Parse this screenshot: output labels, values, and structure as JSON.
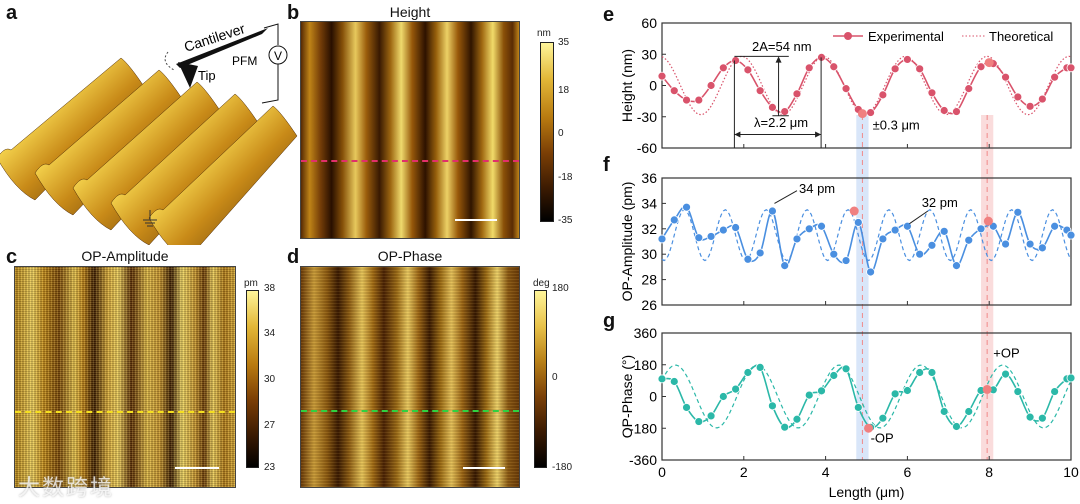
{
  "panel_labels": {
    "a": "a",
    "b": "b",
    "c": "c",
    "d": "d",
    "e": "e",
    "f": "f",
    "g": "g"
  },
  "panel_a": {
    "cantilever": "Cantilever",
    "tip": "Tip",
    "pfm": "PFM",
    "voltage": "V"
  },
  "maps": {
    "height": {
      "title": "Height",
      "unit": "nm",
      "ticks": [
        "35",
        "18",
        "0",
        "-18",
        "-35"
      ],
      "line_color": "#e0306a"
    },
    "amplitude": {
      "title": "OP-Amplitude",
      "unit": "pm",
      "ticks": [
        "38",
        "34",
        "30",
        "27",
        "23"
      ],
      "line_color": "#f5e020"
    },
    "phase": {
      "title": "OP-Phase",
      "unit": "deg",
      "ticks": [
        "180",
        "0",
        "-180"
      ],
      "line_color": "#30d040"
    }
  },
  "watermark": "大数跨境",
  "chart_data": [
    {
      "id": "e",
      "type": "line",
      "ylabel": "Height (nm)",
      "xlabel": "Length (μm)",
      "xlim": [
        0,
        10
      ],
      "ylim": [
        -60,
        60
      ],
      "yticks": [
        60,
        30,
        0,
        -30,
        -60
      ],
      "xticks": [
        0,
        2,
        4,
        6,
        8,
        10
      ],
      "color": "#d9536b",
      "legend": {
        "position": "top-right",
        "entries": [
          "Experimental",
          "Theoretical"
        ]
      },
      "experimental": {
        "x": [
          0,
          0.3,
          0.6,
          0.9,
          1.2,
          1.5,
          1.8,
          2.1,
          2.4,
          2.7,
          3.0,
          3.3,
          3.6,
          3.9,
          4.2,
          4.5,
          4.8,
          5.1,
          5.4,
          5.7,
          6.0,
          6.3,
          6.6,
          6.9,
          7.2,
          7.5,
          7.8,
          8.1,
          8.4,
          8.7,
          9.0,
          9.3,
          9.6,
          9.9,
          10.0
        ],
        "y": [
          9,
          -5,
          -14,
          -14,
          0,
          17,
          24,
          15,
          -5,
          -21,
          -25,
          -8,
          17,
          27,
          18,
          -3,
          -23,
          -26,
          -9,
          16,
          25,
          16,
          -7,
          -24,
          -25,
          -3,
          18,
          21,
          8,
          -11,
          -20,
          -13,
          8,
          17,
          17
        ]
      },
      "theoretical": {
        "amplitude": 28,
        "offset": 0,
        "period": 2.0,
        "peak_at": 1.95
      },
      "highlights": [
        {
          "x": 4.9,
          "y": -27
        },
        {
          "x": 8.0,
          "y": 22
        }
      ],
      "annotations": {
        "amplitude": "2A=54 nm",
        "wavelength": "λ=2.2 μm",
        "tolerance": "±0.3 μm"
      }
    },
    {
      "id": "f",
      "type": "line",
      "ylabel": "OP-Amplitude (pm)",
      "xlim": [
        0,
        10
      ],
      "ylim": [
        26,
        36
      ],
      "yticks": [
        36,
        34,
        32,
        30,
        28,
        26
      ],
      "xticks": [
        0,
        2,
        4,
        6,
        8,
        10
      ],
      "color": "#4a8fe0",
      "experimental": {
        "x": [
          0,
          0.3,
          0.6,
          0.9,
          1.2,
          1.5,
          1.8,
          2.1,
          2.4,
          2.7,
          3.0,
          3.3,
          3.6,
          3.9,
          4.2,
          4.5,
          4.8,
          5.1,
          5.4,
          5.7,
          6.0,
          6.3,
          6.6,
          6.9,
          7.2,
          7.5,
          7.8,
          8.1,
          8.4,
          8.7,
          9.0,
          9.3,
          9.6,
          9.9,
          10.0
        ],
        "y": [
          31.2,
          32.7,
          33.7,
          31.3,
          31.4,
          31.9,
          32.1,
          29.6,
          30.1,
          33.4,
          29.1,
          31.2,
          32.0,
          32.2,
          30.0,
          29.5,
          32.5,
          28.6,
          31.2,
          31.9,
          32.2,
          30.0,
          30.7,
          31.8,
          29.1,
          31.1,
          32.0,
          32.2,
          30.8,
          33.3,
          30.8,
          30.5,
          32.2,
          31.9,
          31.5
        ]
      },
      "theoretical": {
        "amplitude": 2,
        "offset": 31.5,
        "period": 1.0,
        "peak_at": 0.55
      },
      "highlights": [
        {
          "x": 4.7,
          "y": 33.4
        },
        {
          "x": 7.98,
          "y": 32.6
        }
      ],
      "annotations": {
        "peak1": "34 pm",
        "peak2": "32 pm"
      }
    },
    {
      "id": "g",
      "type": "line",
      "ylabel": "OP-Phase (°)",
      "xlim": [
        0,
        10
      ],
      "ylim": [
        -360,
        360
      ],
      "yticks": [
        360,
        180,
        0,
        -180,
        -360
      ],
      "xticks": [
        0,
        2,
        4,
        6,
        8,
        10
      ],
      "color": "#2bb8a8",
      "experimental": {
        "x": [
          0,
          0.3,
          0.6,
          0.9,
          1.2,
          1.5,
          1.8,
          2.1,
          2.4,
          2.7,
          3.0,
          3.3,
          3.6,
          3.9,
          4.2,
          4.5,
          4.8,
          5.1,
          5.4,
          5.7,
          6.0,
          6.3,
          6.6,
          6.9,
          7.2,
          7.5,
          7.8,
          8.1,
          8.4,
          8.7,
          9.0,
          9.3,
          9.6,
          9.9,
          10.0
        ],
        "y": [
          100,
          85,
          -62,
          -142,
          -110,
          0,
          42,
          136,
          165,
          -53,
          -174,
          -129,
          8,
          32,
          119,
          157,
          -62,
          -175,
          -123,
          15,
          34,
          136,
          136,
          -85,
          -170,
          -85,
          34,
          38,
          127,
          28,
          -117,
          -123,
          28,
          100,
          105
        ]
      },
      "theoretical": {
        "amplitude": 178,
        "offset": 0,
        "period": 2.0,
        "peak_at": 0.33
      },
      "highlights": [
        {
          "x": 5.05,
          "y": -180
        },
        {
          "x": 7.95,
          "y": 40
        }
      ],
      "annotations": {
        "neg": "-OP",
        "pos": "+OP"
      }
    }
  ],
  "bands": [
    {
      "x": 4.9,
      "halfwidth": 0.15,
      "color": "#cfe0f7"
    },
    {
      "x": 7.95,
      "halfwidth": 0.15,
      "color": "#f9d3d3"
    }
  ]
}
